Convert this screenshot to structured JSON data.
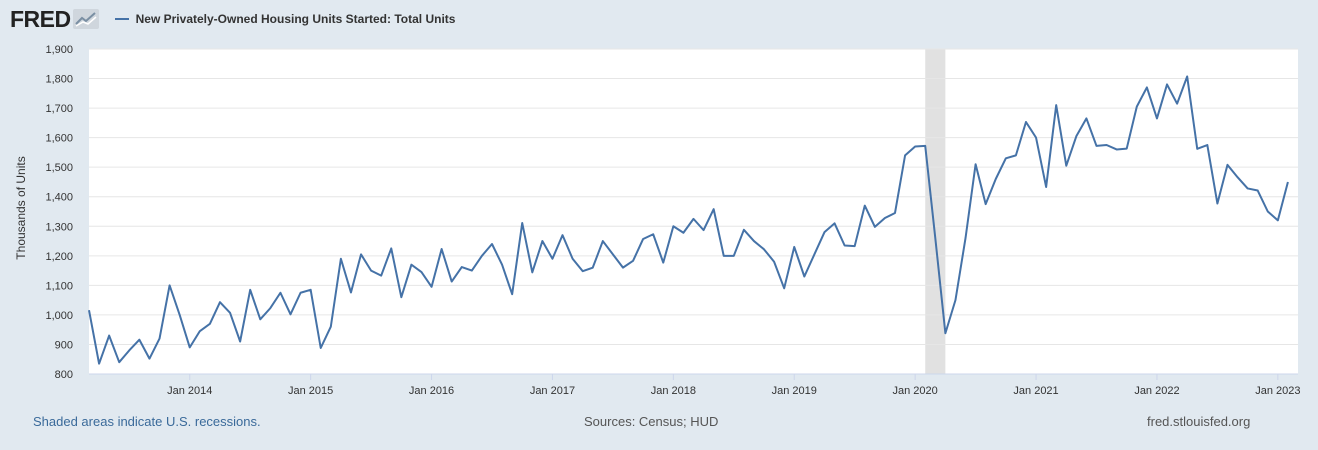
{
  "header": {
    "logo_text": "FRED",
    "logo_icon": "line-chart-icon",
    "series_label": "New Privately-Owned Housing Units Started: Total Units",
    "series_color": "#4572a7"
  },
  "footer": {
    "recession_note": "Shaded areas indicate U.S. recessions.",
    "sources": "Sources: Census; HUD",
    "site": "fred.stlouisfed.org"
  },
  "colors": {
    "background": "#e1e9f0",
    "plot_area": "#ffffff",
    "gridline": "#e6e6e6",
    "recession_shade": "#e1e1e1",
    "line": "#4572a7",
    "link": "#3a6a9a"
  },
  "chart_data": {
    "type": "line",
    "title": "",
    "xlabel": "",
    "ylabel": "Thousands of Units",
    "ylim": [
      800,
      1900
    ],
    "y_ticks": [
      800,
      900,
      1000,
      1100,
      1200,
      1300,
      1400,
      1500,
      1600,
      1700,
      1800,
      1900
    ],
    "x_range": [
      "2013-03",
      "2023-03"
    ],
    "x_ticks": [
      {
        "date": "2014-01",
        "label": "Jan 2014"
      },
      {
        "date": "2015-01",
        "label": "Jan 2015"
      },
      {
        "date": "2016-01",
        "label": "Jan 2016"
      },
      {
        "date": "2017-01",
        "label": "Jan 2017"
      },
      {
        "date": "2018-01",
        "label": "Jan 2018"
      },
      {
        "date": "2019-01",
        "label": "Jan 2019"
      },
      {
        "date": "2020-01",
        "label": "Jan 2020"
      },
      {
        "date": "2021-01",
        "label": "Jan 2021"
      },
      {
        "date": "2022-01",
        "label": "Jan 2022"
      },
      {
        "date": "2023-01",
        "label": "Jan 2023"
      }
    ],
    "grid": true,
    "legend": "top-left",
    "recessions": [
      {
        "start": "2020-02",
        "end": "2020-04"
      }
    ],
    "series": [
      {
        "name": "New Privately-Owned Housing Units Started: Total Units",
        "color": "#4572a7",
        "start": "2013-03",
        "values": [
          1016,
          835,
          930,
          840,
          880,
          916,
          852,
          920,
          1100,
          1000,
          890,
          945,
          970,
          1043,
          1007,
          910,
          1085,
          985,
          1023,
          1075,
          1002,
          1075,
          1085,
          888,
          960,
          1190,
          1076,
          1205,
          1150,
          1133,
          1225,
          1060,
          1170,
          1145,
          1095,
          1223,
          1113,
          1162,
          1150,
          1200,
          1240,
          1170,
          1070,
          1311,
          1144,
          1250,
          1190,
          1270,
          1190,
          1148,
          1160,
          1250,
          1205,
          1160,
          1183,
          1257,
          1273,
          1177,
          1300,
          1278,
          1325,
          1287,
          1358,
          1200,
          1200,
          1288,
          1250,
          1222,
          1180,
          1090,
          1230,
          1130,
          1205,
          1280,
          1310,
          1235,
          1233,
          1370,
          1298,
          1328,
          1345,
          1540,
          1570,
          1572,
          1260,
          938,
          1050,
          1260,
          1510,
          1375,
          1460,
          1530,
          1540,
          1653,
          1600,
          1433,
          1710,
          1505,
          1605,
          1665,
          1572,
          1575,
          1560,
          1563,
          1705,
          1770,
          1665,
          1780,
          1715,
          1807,
          1562,
          1575,
          1377,
          1508,
          1466,
          1428,
          1421,
          1350,
          1320,
          1450
        ]
      }
    ]
  }
}
